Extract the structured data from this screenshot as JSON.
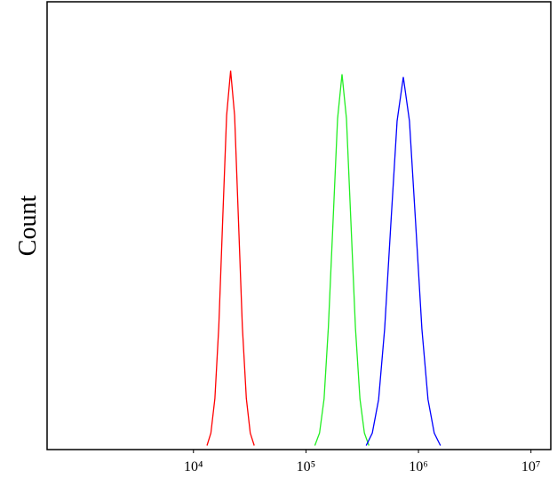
{
  "chart_data": {
    "type": "line",
    "ylabel": "Count",
    "xscale": "log",
    "xlim": [
      500,
      15000000
    ],
    "ylim": [
      0,
      100
    ],
    "xticks": [
      {
        "value": 10000,
        "label": "10⁴"
      },
      {
        "value": 100000,
        "label": "10⁵"
      },
      {
        "value": 1000000,
        "label": "10⁶"
      },
      {
        "value": 10000000,
        "label": "10⁷"
      }
    ],
    "series": [
      {
        "color": "#ff0000",
        "x": [
          13200,
          14300,
          15500,
          16800,
          18200,
          19700,
          21400,
          23200,
          25100,
          27200,
          29500,
          32000,
          34700
        ],
        "values": [
          0.9,
          3.7,
          11.4,
          27.5,
          51.4,
          74.6,
          84.6,
          74.6,
          51.4,
          27.5,
          11.4,
          3.7,
          0.9
        ]
      },
      {
        "color": "#22ee22",
        "x": [
          120000,
          132000,
          145000,
          158000,
          174000,
          191000,
          209000,
          229000,
          251000,
          275000,
          302000,
          331000,
          363000
        ],
        "values": [
          0.9,
          3.7,
          11.3,
          27.2,
          50.9,
          73.9,
          83.8,
          73.9,
          50.9,
          27.2,
          11.3,
          3.7,
          0.9
        ]
      },
      {
        "color": "#0000ff",
        "x": [
          343000,
          389000,
          442000,
          501000,
          569000,
          646000,
          733000,
          832000,
          944000,
          1072000,
          1216000,
          1380000,
          1567000
        ],
        "values": [
          0.9,
          3.7,
          11.2,
          27.0,
          50.5,
          73.4,
          83.2,
          73.4,
          50.5,
          27.0,
          11.2,
          3.7,
          0.9
        ]
      }
    ]
  }
}
